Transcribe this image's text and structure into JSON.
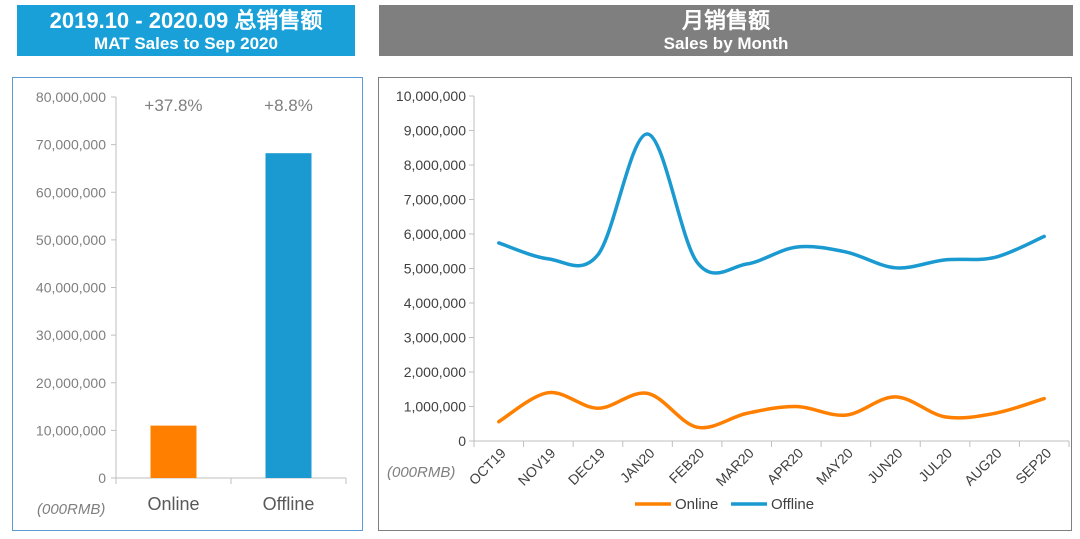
{
  "colors": {
    "left_header_bg": "#1aa0d8",
    "right_header_bg": "#7f7f7f",
    "online": "#ff8000",
    "offline": "#1a9ad0"
  },
  "left_header": {
    "title": "2019.10 - 2020.09 总销售额",
    "subtitle": "MAT Sales to Sep 2020"
  },
  "right_header": {
    "title": "月销售额",
    "subtitle": "Sales by Month"
  },
  "chart_data": [
    {
      "type": "bar",
      "title": "MAT Sales to Sep 2020",
      "unit_label": "(000RMB)",
      "categories": [
        "Online",
        "Offline"
      ],
      "values": [
        11000000,
        68200000
      ],
      "colors": [
        "#ff8000",
        "#1a9ad0"
      ],
      "annotations": [
        "+37.8%",
        "+8.8%"
      ],
      "ylim": [
        0,
        80000000
      ],
      "yticks": [
        0,
        10000000,
        20000000,
        30000000,
        40000000,
        50000000,
        60000000,
        70000000,
        80000000
      ],
      "ytick_labels": [
        "0",
        "10,000,000",
        "20,000,000",
        "30,000,000",
        "40,000,000",
        "50,000,000",
        "60,000,000",
        "70,000,000",
        "80,000,000"
      ]
    },
    {
      "type": "line",
      "title": "Sales by Month",
      "unit_label": "(000RMB)",
      "categories": [
        "OCT19",
        "NOV19",
        "DEC19",
        "JAN20",
        "FEB20",
        "MAR20",
        "APR20",
        "MAY20",
        "JUN20",
        "JUL20",
        "AUG20",
        "SEP20"
      ],
      "series": [
        {
          "name": "Online",
          "color": "#ff8000",
          "values": [
            560000,
            1400000,
            950000,
            1380000,
            400000,
            800000,
            1000000,
            750000,
            1280000,
            700000,
            800000,
            1230000
          ]
        },
        {
          "name": "Offline",
          "color": "#1a9ad0",
          "values": [
            5740000,
            5280000,
            5400000,
            8900000,
            5180000,
            5130000,
            5620000,
            5480000,
            5020000,
            5250000,
            5320000,
            5930000
          ]
        }
      ],
      "ylim": [
        0,
        10000000
      ],
      "yticks": [
        0,
        1000000,
        2000000,
        3000000,
        4000000,
        5000000,
        6000000,
        7000000,
        8000000,
        9000000,
        10000000
      ],
      "ytick_labels": [
        "0",
        "1,000,000",
        "2,000,000",
        "3,000,000",
        "4,000,000",
        "5,000,000",
        "6,000,000",
        "7,000,000",
        "8,000,000",
        "9,000,000",
        "10,000,000"
      ],
      "legend": "bottom-center"
    }
  ]
}
